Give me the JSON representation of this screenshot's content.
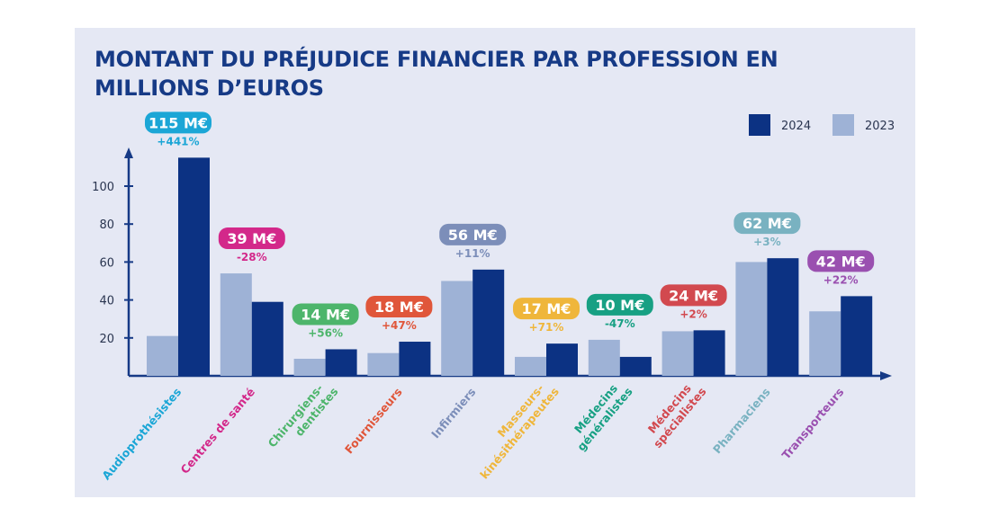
{
  "chart_data": {
    "type": "bar",
    "title": "MONTANT DU PRÉJUDICE FINANCIER PAR PROFESSION EN MILLIONS D’EUROS",
    "xlabel": "",
    "ylabel": "",
    "ylim": [
      0,
      120
    ],
    "yticks": [
      20,
      40,
      60,
      80,
      100
    ],
    "grid": false,
    "legend_position": "top-right",
    "categories": [
      [
        "Audioprothésistes"
      ],
      [
        "Centres de santé"
      ],
      [
        "Chirurgiens-",
        "dentistes"
      ],
      [
        "Fournisseurs"
      ],
      [
        "Infirmiers"
      ],
      [
        "Masseurs-",
        "kinésithérapeutes"
      ],
      [
        "Médecins",
        "généralistes"
      ],
      [
        "Médecins",
        "spécialistes"
      ],
      [
        "Pharmaciens"
      ],
      [
        "Transporteurs"
      ]
    ],
    "category_colors": [
      "#1ba6d6",
      "#d3288a",
      "#4db56b",
      "#e0563a",
      "#7c8eb9",
      "#efb63b",
      "#17a083",
      "#d2494f",
      "#79b2c1",
      "#9a50b0"
    ],
    "series": [
      {
        "name": "2024",
        "color": "#0c3283",
        "values": [
          115,
          39,
          14,
          18,
          56,
          17,
          10,
          24,
          62,
          42
        ]
      },
      {
        "name": "2023",
        "color": "#9eb2d6",
        "values": [
          21,
          54,
          9,
          12,
          50,
          10,
          19,
          23.5,
          60,
          34
        ]
      }
    ],
    "data_labels": [
      "115 M€",
      "39 M€",
      "14 M€",
      "18 M€",
      "56 M€",
      "17 M€",
      "10 M€",
      "24 M€",
      "62 M€",
      "42 M€"
    ],
    "change_labels": [
      "+441%",
      "-28%",
      "+56%",
      "+47%",
      "+11%",
      "+71%",
      "-47%",
      "+2%",
      "+3%",
      "+22%"
    ]
  }
}
